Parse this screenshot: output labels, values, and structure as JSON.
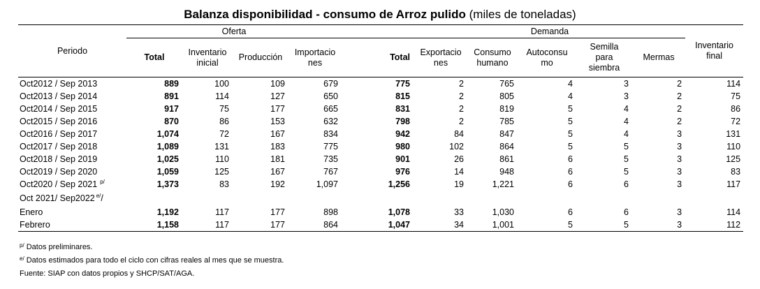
{
  "title": {
    "bold": "Balanza disponibilidad - consumo de Arroz pulido",
    "normal": "(miles de toneladas)"
  },
  "groups": {
    "oferta": "Oferta",
    "demanda": "Demanda"
  },
  "headers": {
    "periodo": "Periodo",
    "total_oferta": "Total",
    "inv_inicial": "Inventario inicial",
    "produccion": "Producción",
    "importaciones": "Importacio nes",
    "total_demanda": "Total",
    "exportaciones": "Exportacio nes",
    "consumo": "Consumo humano",
    "autoconsumo": "Autoconsu mo",
    "semilla": "Semilla para siembra",
    "mermas": "Mermas",
    "inv_final": "Inventario final"
  },
  "rows": [
    {
      "periodo": "Oct2012 / Sep 2013",
      "sup": "",
      "total_o": "889",
      "inv_i": "100",
      "prod": "109",
      "imp": "679",
      "total_d": "775",
      "exp": "2",
      "cons": "765",
      "auto": "4",
      "sem": "3",
      "mer": "2",
      "inv_f": "114"
    },
    {
      "periodo": "Oct2013 / Sep 2014",
      "sup": "",
      "total_o": "891",
      "inv_i": "114",
      "prod": "127",
      "imp": "650",
      "total_d": "815",
      "exp": "2",
      "cons": "805",
      "auto": "4",
      "sem": "3",
      "mer": "2",
      "inv_f": "75"
    },
    {
      "periodo": "Oct2014 / Sep 2015",
      "sup": "",
      "total_o": "917",
      "inv_i": "75",
      "prod": "177",
      "imp": "665",
      "total_d": "831",
      "exp": "2",
      "cons": "819",
      "auto": "5",
      "sem": "4",
      "mer": "2",
      "inv_f": "86"
    },
    {
      "periodo": "Oct2015 / Sep 2016",
      "sup": "",
      "total_o": "870",
      "inv_i": "86",
      "prod": "153",
      "imp": "632",
      "total_d": "798",
      "exp": "2",
      "cons": "785",
      "auto": "5",
      "sem": "4",
      "mer": "2",
      "inv_f": "72"
    },
    {
      "periodo": "Oct2016 / Sep 2017",
      "sup": "",
      "total_o": "1,074",
      "inv_i": "72",
      "prod": "167",
      "imp": "834",
      "total_d": "942",
      "exp": "84",
      "cons": "847",
      "auto": "5",
      "sem": "4",
      "mer": "3",
      "inv_f": "131"
    },
    {
      "periodo": "Oct2017 / Sep 2018",
      "sup": "",
      "total_o": "1,089",
      "inv_i": "131",
      "prod": "183",
      "imp": "775",
      "total_d": "980",
      "exp": "102",
      "cons": "864",
      "auto": "5",
      "sem": "5",
      "mer": "3",
      "inv_f": "110"
    },
    {
      "periodo": "Oct2018 / Sep 2019",
      "sup": "",
      "total_o": "1,025",
      "inv_i": "110",
      "prod": "181",
      "imp": "735",
      "total_d": "901",
      "exp": "26",
      "cons": "861",
      "auto": "6",
      "sem": "5",
      "mer": "3",
      "inv_f": "125"
    },
    {
      "periodo": "Oct2019 / Sep 2020",
      "sup": "",
      "total_o": "1,059",
      "inv_i": "125",
      "prod": "167",
      "imp": "767",
      "total_d": "976",
      "exp": "14",
      "cons": "948",
      "auto": "6",
      "sem": "5",
      "mer": "3",
      "inv_f": "83"
    },
    {
      "periodo": "Oct2020 / Sep 2021",
      "sup": "p/",
      "total_o": "1,373",
      "inv_i": "83",
      "prod": "192",
      "imp": "1,097",
      "total_d": "1,256",
      "exp": "19",
      "cons": "1,221",
      "auto": "6",
      "sem": "6",
      "mer": "3",
      "inv_f": "117"
    }
  ],
  "section": {
    "label": "Oct 2021/ Sep2022",
    "sup": "e/"
  },
  "monthly_rows": [
    {
      "periodo": "Enero",
      "total_o": "1,192",
      "inv_i": "117",
      "prod": "177",
      "imp": "898",
      "total_d": "1,078",
      "exp": "33",
      "cons": "1,030",
      "auto": "6",
      "sem": "6",
      "mer": "3",
      "inv_f": "114"
    },
    {
      "periodo": "Febrero",
      "total_o": "1,158",
      "inv_i": "117",
      "prod": "177",
      "imp": "864",
      "total_d": "1,047",
      "exp": "34",
      "cons": "1,001",
      "auto": "5",
      "sem": "5",
      "mer": "3",
      "inv_f": "112"
    }
  ],
  "notes": {
    "n1_sup": "p/",
    "n1": "Datos preliminares.",
    "n2_sup": "e/",
    "n2": "Datos estimados para todo el ciclo con cifras reales al mes que se muestra.",
    "n3": "Fuente: SIAP con datos propios y SHCP/SAT/AGA."
  }
}
